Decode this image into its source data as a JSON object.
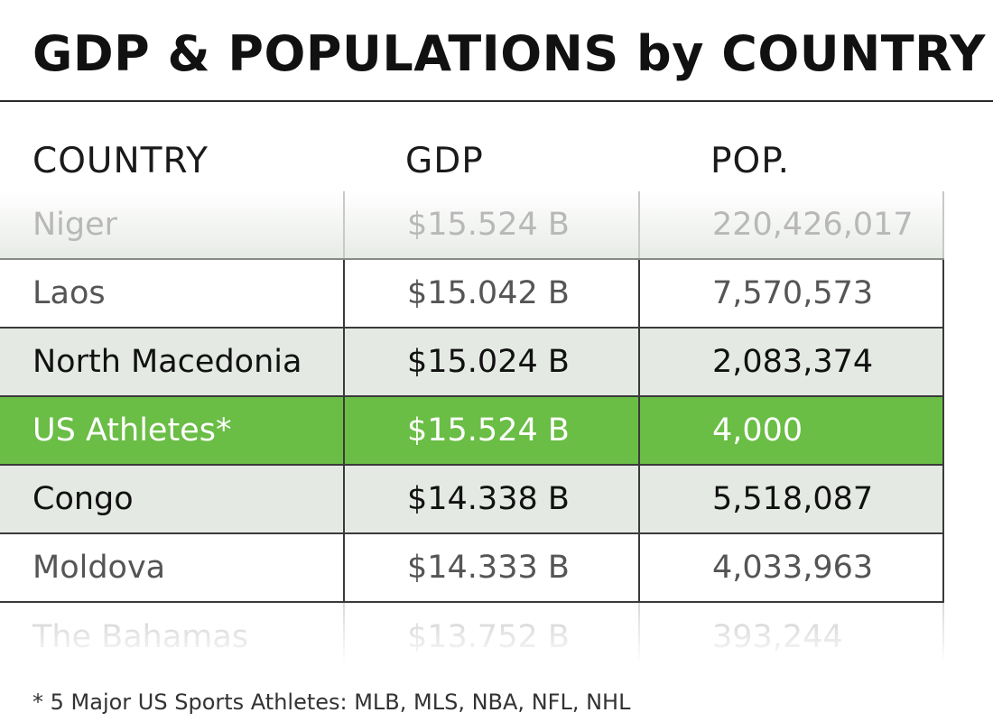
{
  "title": "GDP & POPULATIONS by COUNTRY",
  "footnote": "* 5 Major US Sports Athletes: MLB, MLS, NBA, NFL, NHL",
  "colors": {
    "highlight": "#6abd45",
    "tint_row": "#e4e9e3",
    "rule": "#2b2b2b"
  },
  "chart_data": {
    "type": "table",
    "title": "GDP & POPULATIONS by COUNTRY",
    "columns": [
      "COUNTRY",
      "GDP",
      "POP."
    ],
    "rows": [
      [
        "Niger",
        "$15.524 B",
        "220,426,017"
      ],
      [
        "Laos",
        "$15.042 B",
        "7,570,573"
      ],
      [
        "North Macedonia",
        "$15.024 B",
        "2,083,374"
      ],
      [
        "US Athletes*",
        "$15.524 B",
        "4,000"
      ],
      [
        "Congo",
        "$14.338 B",
        "5,518,087"
      ],
      [
        "Moldova",
        "$14.333 B",
        "4,033,963"
      ],
      [
        "The Bahamas",
        "$13.752 B",
        "393,244"
      ]
    ],
    "highlighted_row": "US Athletes*"
  }
}
